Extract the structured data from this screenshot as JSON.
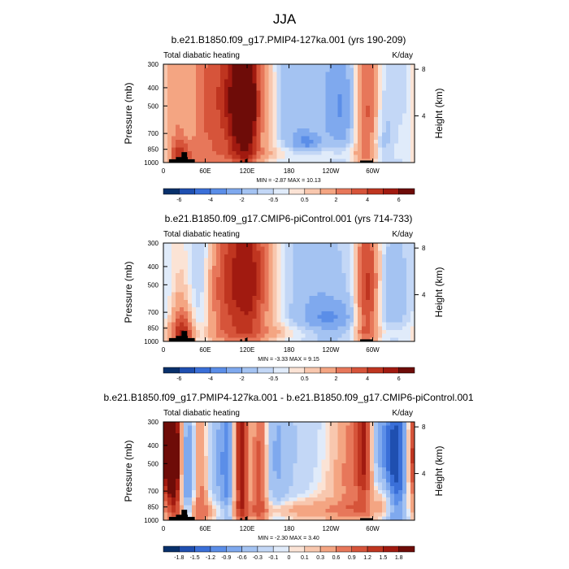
{
  "main_title": "JJA",
  "pressure_label": "Pressure (mb)",
  "height_label": "Height (km)",
  "pressure_ticks": [
    "300",
    "400",
    "500",
    "700",
    "850",
    "1000"
  ],
  "height_ticks": [
    "8",
    "4"
  ],
  "lon_ticks": [
    "0",
    "60E",
    "120E",
    "180",
    "120W",
    "60W"
  ],
  "chart_data": [
    {
      "type": "heatmap",
      "title": "b.e21.B1850.f09_g17.PMIP4-127ka.001 (yrs 190-209)",
      "left_label": "Total diabatic heating",
      "units": "K/day",
      "stats": "MIN = -2.87  MAX = 10.13",
      "min": -2.87,
      "max": 10.13,
      "colorbar_labels": [
        "-6",
        "-4",
        "-2",
        "-0.5",
        "0.5",
        "2",
        "4",
        "6"
      ],
      "colorbar_levels": [
        -7,
        -6,
        -5,
        -4,
        -3,
        -2,
        -1,
        -0.5,
        0,
        0.5,
        1,
        2,
        3,
        4,
        5,
        6,
        7
      ],
      "colors": [
        "#08306b",
        "#1f4fb0",
        "#3a6fd8",
        "#5b8ee8",
        "#7fa9ee",
        "#a4c3f2",
        "#c3d7f6",
        "#e0ebfa",
        "#fbe3d5",
        "#f8c7ae",
        "#f4a582",
        "#e7775a",
        "#d6543a",
        "#bf3520",
        "#a11a10",
        "#6e0c08"
      ]
    },
    {
      "type": "heatmap",
      "title": "b.e21.B1850.f09_g17.CMIP6-piControl.001 (yrs 714-733)",
      "left_label": "Total diabatic heating",
      "units": "K/day",
      "stats": "MIN = -3.33  MAX = 9.15",
      "min": -3.33,
      "max": 9.15,
      "colorbar_labels": [
        "-6",
        "-4",
        "-2",
        "-0.5",
        "0.5",
        "2",
        "4",
        "6"
      ],
      "colorbar_levels": [
        -7,
        -6,
        -5,
        -4,
        -3,
        -2,
        -1,
        -0.5,
        0,
        0.5,
        1,
        2,
        3,
        4,
        5,
        6,
        7
      ],
      "colors": [
        "#08306b",
        "#1f4fb0",
        "#3a6fd8",
        "#5b8ee8",
        "#7fa9ee",
        "#a4c3f2",
        "#c3d7f6",
        "#e0ebfa",
        "#fbe3d5",
        "#f8c7ae",
        "#f4a582",
        "#e7775a",
        "#d6543a",
        "#bf3520",
        "#a11a10",
        "#6e0c08"
      ]
    },
    {
      "type": "heatmap",
      "title": "b.e21.B1850.f09_g17.PMIP4-127ka.001 - b.e21.B1850.f09_g17.CMIP6-piControl.001",
      "left_label": "Total diabatic heating",
      "units": "K/day",
      "stats": "MIN = -2.30  MAX = 3.40",
      "min": -2.3,
      "max": 3.4,
      "colorbar_labels": [
        "-1.8",
        "-1.5",
        "-1.2",
        "-0.9",
        "-0.6",
        "-0.3",
        "-0.1",
        "0",
        "0.1",
        "0.3",
        "0.6",
        "0.9",
        "1.2",
        "1.5",
        "1.8"
      ],
      "colorbar_levels": [
        -2.1,
        -1.8,
        -1.5,
        -1.2,
        -0.9,
        -0.6,
        -0.3,
        -0.1,
        0,
        0.1,
        0.3,
        0.6,
        0.9,
        1.2,
        1.5,
        1.8,
        2.1
      ],
      "colors": [
        "#08306b",
        "#1f4fb0",
        "#3a6fd8",
        "#5b8ee8",
        "#7fa9ee",
        "#a4c3f2",
        "#c3d7f6",
        "#e0ebfa",
        "#fbe3d5",
        "#f8c7ae",
        "#f4a582",
        "#e7775a",
        "#d6543a",
        "#bf3520",
        "#a11a10",
        "#6e0c08"
      ]
    }
  ]
}
